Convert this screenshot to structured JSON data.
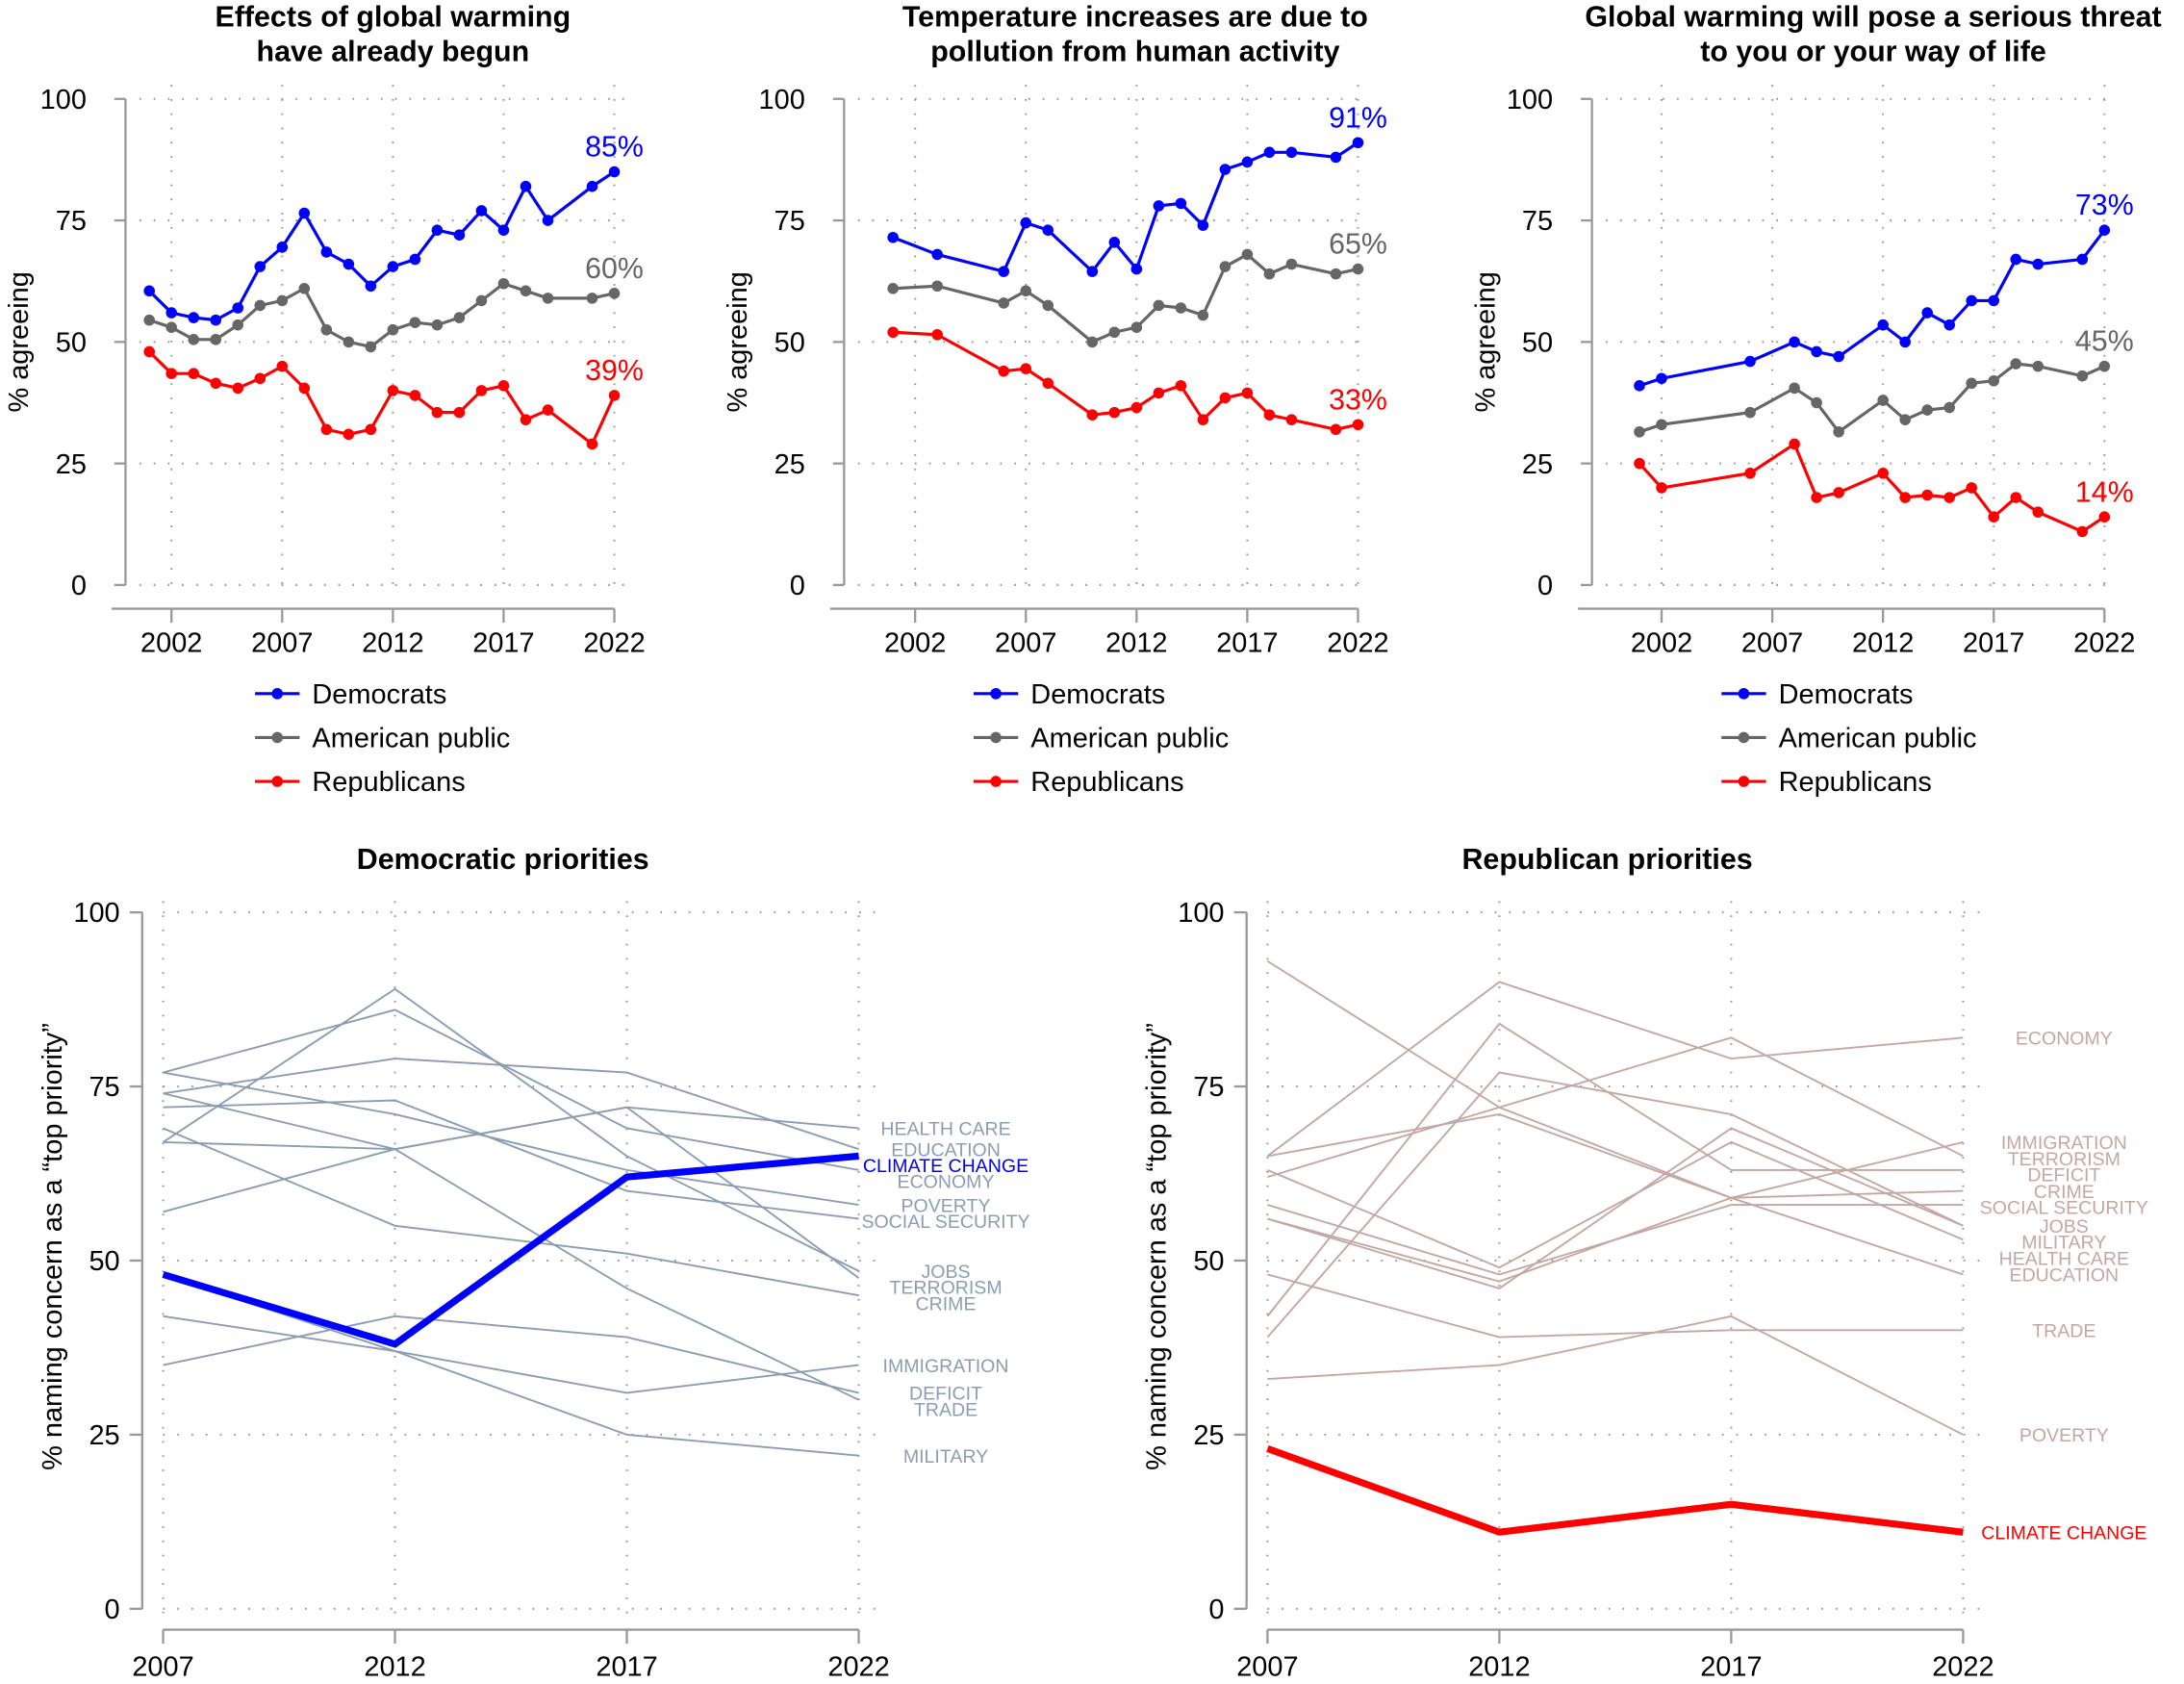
{
  "colors": {
    "democrats": "#0000ff",
    "public": "#666666",
    "republicans": "#ff0000",
    "dem_other": "#8c9db3",
    "rep_other": "#c4a7a4"
  },
  "legend": [
    "Democrats",
    "American public",
    "Republicans"
  ],
  "chart_data": [
    {
      "type": "line",
      "title": [
        "Effects of global warming",
        "have already begun"
      ],
      "ylabel": "% agreeing",
      "ylim": [
        0,
        100
      ],
      "yticks": [
        0,
        25,
        50,
        75,
        100
      ],
      "xticks": [
        2002,
        2007,
        2012,
        2017,
        2022
      ],
      "grid": true,
      "legend_placement": "bottom",
      "x": [
        2001,
        2002,
        2003,
        2004,
        2005,
        2006,
        2007,
        2008,
        2009,
        2010,
        2011,
        2012,
        2013,
        2014,
        2015,
        2016,
        2017,
        2018,
        2019,
        2021,
        2022
      ],
      "series": [
        {
          "name": "Democrats",
          "end_label": "85%",
          "values": [
            60.5,
            56,
            55,
            54.5,
            57,
            65.5,
            69.5,
            76.5,
            68.5,
            66,
            61.5,
            65.5,
            67,
            73,
            72,
            77,
            73,
            82,
            75,
            82,
            85
          ]
        },
        {
          "name": "American public",
          "end_label": "60%",
          "values": [
            54.5,
            53,
            50.5,
            50.5,
            53.5,
            57.5,
            58.5,
            61,
            52.5,
            50,
            49,
            52.5,
            54,
            53.5,
            55,
            58.5,
            62,
            60.5,
            59,
            59,
            60
          ]
        },
        {
          "name": "Republicans",
          "end_label": "39%",
          "values": [
            48,
            43.5,
            43.5,
            41.5,
            40.5,
            42.5,
            45,
            40.5,
            32,
            31,
            32,
            40,
            39,
            35.5,
            35.5,
            40,
            41,
            34,
            36,
            29,
            39
          ]
        }
      ]
    },
    {
      "type": "line",
      "title": [
        "Temperature increases are due to",
        "pollution from human activity"
      ],
      "ylabel": "% agreeing",
      "ylim": [
        0,
        100
      ],
      "yticks": [
        0,
        25,
        50,
        75,
        100
      ],
      "xticks": [
        2002,
        2007,
        2012,
        2017,
        2022
      ],
      "grid": true,
      "legend_placement": "bottom",
      "x": [
        2001,
        2003,
        2006,
        2007,
        2008,
        2010,
        2011,
        2012,
        2013,
        2014,
        2015,
        2016,
        2017,
        2018,
        2019,
        2021,
        2022
      ],
      "series": [
        {
          "name": "Democrats",
          "end_label": "91%",
          "values": [
            71.5,
            68,
            64.5,
            74.5,
            73,
            64.5,
            70.5,
            65,
            78,
            78.5,
            74,
            85.5,
            87,
            89,
            89,
            88,
            91
          ]
        },
        {
          "name": "American public",
          "end_label": "65%",
          "values": [
            61,
            61.5,
            58,
            60.5,
            57.5,
            50,
            52,
            53,
            57.5,
            57,
            55.5,
            65.5,
            68,
            64,
            66,
            64,
            65
          ]
        },
        {
          "name": "Republicans",
          "end_label": "33%",
          "values": [
            52,
            51.5,
            44,
            44.5,
            41.5,
            35,
            35.5,
            36.5,
            39.5,
            41,
            34,
            38.5,
            39.5,
            35,
            34,
            32,
            33
          ]
        }
      ]
    },
    {
      "type": "line",
      "title": [
        "Global warming will pose a serious threat",
        "to you or your way of life"
      ],
      "ylabel": "% agreeing",
      "ylim": [
        0,
        100
      ],
      "yticks": [
        0,
        25,
        50,
        75,
        100
      ],
      "xticks": [
        2002,
        2007,
        2012,
        2017,
        2022
      ],
      "grid": true,
      "legend_placement": "bottom",
      "x": [
        2001,
        2002,
        2006,
        2008,
        2009,
        2010,
        2012,
        2013,
        2014,
        2015,
        2016,
        2017,
        2018,
        2019,
        2021,
        2022
      ],
      "series": [
        {
          "name": "Democrats",
          "end_label": "73%",
          "values": [
            41,
            42.5,
            46,
            50,
            48,
            47,
            53.5,
            50,
            56,
            53.5,
            58.5,
            58.5,
            67,
            66,
            67,
            73
          ]
        },
        {
          "name": "American public",
          "end_label": "45%",
          "values": [
            31.5,
            33,
            35.5,
            40.5,
            37.5,
            31.5,
            38,
            34,
            36,
            36.5,
            41.5,
            42,
            45.5,
            45,
            43,
            45
          ]
        },
        {
          "name": "Republicans",
          "end_label": "14%",
          "values": [
            25,
            20,
            23,
            29,
            18,
            19,
            23,
            18,
            18.5,
            18,
            20,
            14,
            18,
            15,
            11,
            14
          ]
        }
      ]
    },
    {
      "type": "line",
      "title": "Democratic priorities",
      "ylabel": "% naming concern as a “top priority”",
      "ylim": [
        0,
        100
      ],
      "yticks": [
        0,
        25,
        50,
        75,
        100
      ],
      "x": [
        2007,
        2012,
        2017,
        2022
      ],
      "grid": true,
      "series": [
        {
          "name": "HEALTH CARE",
          "values": [
            57,
            66,
            72,
            69
          ]
        },
        {
          "name": "EDUCATION",
          "values": [
            74,
            79,
            77,
            66
          ]
        },
        {
          "name": "CLIMATE CHANGE",
          "highlight": true,
          "values": [
            48,
            38,
            62,
            65
          ]
        },
        {
          "name": "ECONOMY",
          "values": [
            77,
            86,
            69,
            63
          ]
        },
        {
          "name": "POVERTY",
          "values": [
            77,
            71,
            63,
            58
          ]
        },
        {
          "name": "SOCIAL SECURITY",
          "values": [
            72,
            73,
            60,
            56
          ]
        },
        {
          "name": "JOBS",
          "values": [
            67,
            89,
            65,
            48.5
          ]
        },
        {
          "name": "TERRORISM",
          "values": [
            67,
            66,
            72,
            47.5
          ]
        },
        {
          "name": "CRIME",
          "values": [
            69,
            55,
            51,
            45
          ]
        },
        {
          "name": "IMMIGRATION",
          "values": [
            42,
            37,
            31,
            35
          ]
        },
        {
          "name": "DEFICIT",
          "values": [
            35,
            42,
            39,
            31
          ]
        },
        {
          "name": "TRADE",
          "values": [
            74,
            66,
            46,
            30
          ]
        },
        {
          "name": "MILITARY",
          "values": [
            48,
            37,
            25,
            22
          ]
        }
      ]
    },
    {
      "type": "line",
      "title": "Republican priorities",
      "ylabel": "% naming concern as a “top priority”",
      "ylim": [
        0,
        100
      ],
      "yticks": [
        0,
        25,
        50,
        75,
        100
      ],
      "x": [
        2007,
        2012,
        2017,
        2022
      ],
      "grid": true,
      "series": [
        {
          "name": "ECONOMY",
          "values": [
            65,
            90,
            79,
            82
          ]
        },
        {
          "name": "IMMIGRATION",
          "values": [
            62,
            72,
            59,
            67
          ]
        },
        {
          "name": "TERRORISM",
          "values": [
            93,
            72,
            82,
            65
          ]
        },
        {
          "name": "DEFICIT",
          "values": [
            42,
            84,
            63,
            63
          ]
        },
        {
          "name": "CRIME",
          "values": [
            56,
            47,
            59,
            60
          ]
        },
        {
          "name": "SOCIAL SECURITY",
          "values": [
            58,
            48,
            58,
            58
          ]
        },
        {
          "name": "JOBS",
          "values": [
            39,
            77,
            71,
            55
          ]
        },
        {
          "name": "MILITARY",
          "values": [
            56,
            46,
            69,
            55
          ]
        },
        {
          "name": "HEALTH CARE",
          "values": [
            63,
            49,
            67,
            53
          ]
        },
        {
          "name": "EDUCATION",
          "values": [
            65,
            71,
            59,
            48
          ]
        },
        {
          "name": "TRADE",
          "values": [
            48,
            39,
            40,
            40
          ]
        },
        {
          "name": "POVERTY",
          "values": [
            33,
            35,
            42,
            25
          ]
        },
        {
          "name": "CLIMATE CHANGE",
          "highlight": true,
          "values": [
            23,
            11,
            15,
            11
          ]
        }
      ]
    }
  ]
}
